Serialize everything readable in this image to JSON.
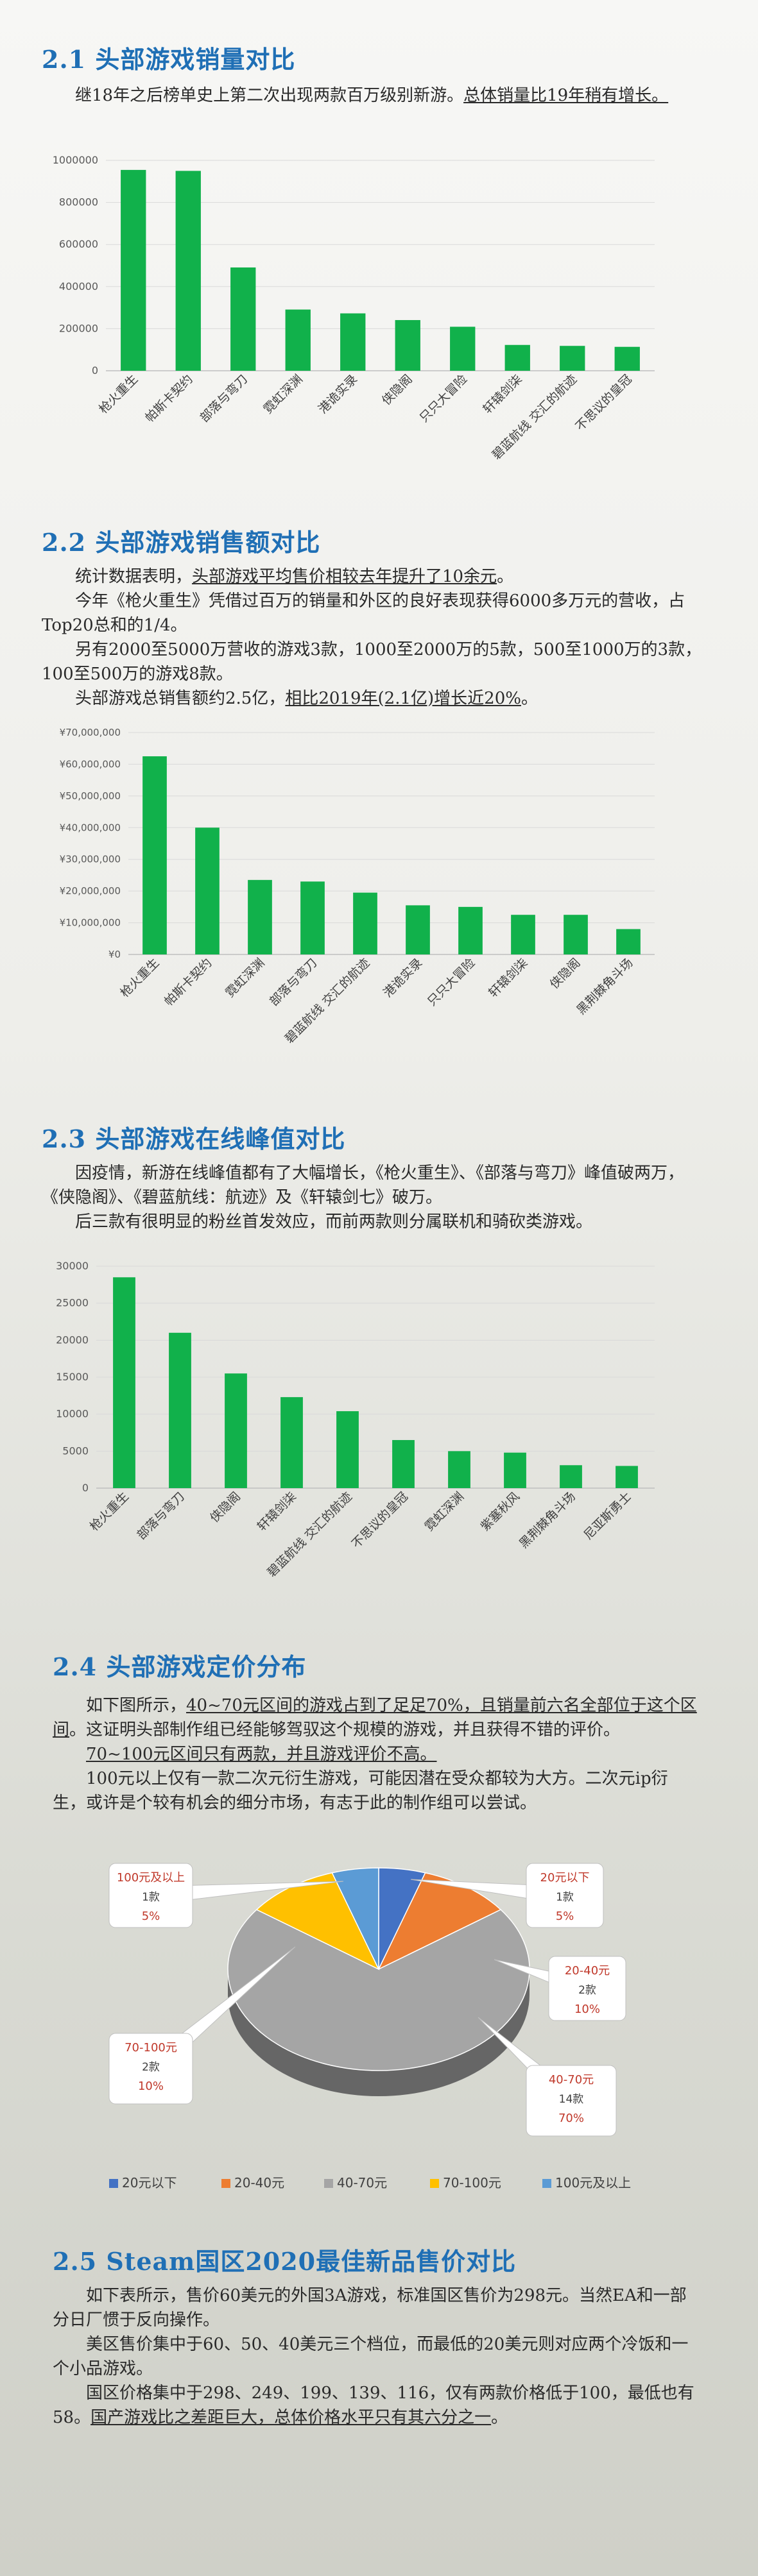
{
  "s1": {
    "title": "2.1 头部游戏销量对比",
    "p1_a": "继18年之后榜单史上第二次出现两款百万级别新游。",
    "p1_b": "总体销量比19年稍有增长。"
  },
  "s2": {
    "title": "2.2 头部游戏销售额对比",
    "p1_a": "统计数据表明，",
    "p1_b": "头部游戏平均售价相较去年提升了10余元",
    "p1_c": "。",
    "p2": "今年《枪火重生》凭借过百万的销量和外区的良好表现获得6000多万元的营收，占Top20总和的1/4。",
    "p3": "另有2000至5000万营收的游戏3款，1000至2000万的5款，500至1000万的3款，100至500万的游戏8款。",
    "p4_a": "头部游戏总销售额约2.5亿，",
    "p4_b": "相比2019年(2.1亿)增长近20%",
    "p4_c": "。"
  },
  "s3": {
    "title": "2.3 头部游戏在线峰值对比",
    "p1": "因疫情，新游在线峰值都有了大幅增长，《枪火重生》、《部落与弯刀》峰值破两万，《侠隐阁》、《碧蓝航线：航迹》及《轩辕剑七》破万。",
    "p2": "后三款有很明显的粉丝首发效应，而前两款则分属联机和骑砍类游戏。"
  },
  "s4": {
    "title": "2.4 头部游戏定价分布",
    "p1_a": "如下图所示，",
    "p1_b": "40~70元区间的游戏占到了足足70%，且销量前六名全部位于这个区间",
    "p1_c": "。这证明头部制作组已经能够驾驭这个规模的游戏，并且获得不错的评价。",
    "p2": "70~100元区间只有两款，并且游戏评价不高。",
    "p3": "100元以上仅有一款二次元衍生游戏，可能因潜在受众都较为大方。二次元ip衍生，或许是个较有机会的细分市场，有志于此的制作组可以尝试。"
  },
  "s5": {
    "title": "2.5 Steam国区2020最佳新品售价对比",
    "p1": "如下表所示，售价60美元的外国3A游戏，标准国区售价为298元。当然EA和一部分日厂惯于反向操作。",
    "p2": "美区售价集中于60、50、40美元三个档位，而最低的20美元则对应两个冷饭和一个小品游戏。",
    "p3_a": "国区价格集中于298、249、199、139、116，仅有两款价格低于100，最低也有58。",
    "p3_b": "国产游戏比之差距巨大，总体价格水平只有其六分之一",
    "p3_c": "。"
  },
  "chart_data": [
    {
      "type": "bar",
      "categories": [
        "枪火重生",
        "帕斯卡契约",
        "部落与弯刀",
        "霓虹深渊",
        "港诡实录",
        "侠隐阁",
        "只只大冒险",
        "轩辕剑柒",
        "碧蓝航线 交汇的航迹",
        "不思议的皇冠"
      ],
      "values": [
        1050000,
        1045000,
        540000,
        320000,
        300000,
        265000,
        230000,
        135000,
        130000,
        125000
      ],
      "ylim": [
        0,
        1100000
      ],
      "yticks": [
        "0",
        "200000",
        "400000",
        "600000",
        "800000",
        "1000000"
      ],
      "color": "#11b14b"
    },
    {
      "type": "bar",
      "categories": [
        "枪火重生",
        "帕斯卡契约",
        "霓虹深渊",
        "部落与弯刀",
        "碧蓝航线 交汇的航迹",
        "港诡实录",
        "只只大冒险",
        "轩辕剑柒",
        "侠隐阁",
        "黑荆棘角斗场"
      ],
      "values": [
        62500000,
        40000000,
        23500000,
        23000000,
        19500000,
        15500000,
        15000000,
        12500000,
        12500000,
        8000000
      ],
      "ylim": [
        0,
        70000000
      ],
      "yticks": [
        "¥0",
        "¥10,000,000",
        "¥20,000,000",
        "¥30,000,000",
        "¥40,000,000",
        "¥50,000,000",
        "¥60,000,000",
        "¥70,000,000"
      ],
      "color": "#11b14b"
    },
    {
      "type": "bar",
      "categories": [
        "枪火重生",
        "部落与弯刀",
        "侠隐阁",
        "轩辕剑柒",
        "碧蓝航线 交汇的航迹",
        "不思议的皇冠",
        "霓虹深渊",
        "紫塞秋风",
        "黑荆棘角斗场",
        "尼亚斯勇士"
      ],
      "values": [
        28500,
        21000,
        15500,
        12300,
        10400,
        6500,
        5000,
        4800,
        3100,
        3000
      ],
      "ylim": [
        0,
        30000
      ],
      "yticks": [
        "0",
        "5000",
        "10000",
        "15000",
        "20000",
        "25000",
        "30000"
      ],
      "color": "#11b14b"
    },
    {
      "type": "pie",
      "labels": [
        "20元以下",
        "20-40元",
        "40-70元",
        "70-100元",
        "100元及以上"
      ],
      "values": [
        1,
        2,
        14,
        2,
        1
      ],
      "counts": [
        "1款",
        "2款",
        "14款",
        "2款",
        "1款"
      ],
      "percents": [
        "5%",
        "10%",
        "70%",
        "10%",
        "5%"
      ],
      "colors": [
        "#4472c4",
        "#ed7d31",
        "#a5a5a5",
        "#ffc000",
        "#5b9bd5"
      ]
    }
  ]
}
